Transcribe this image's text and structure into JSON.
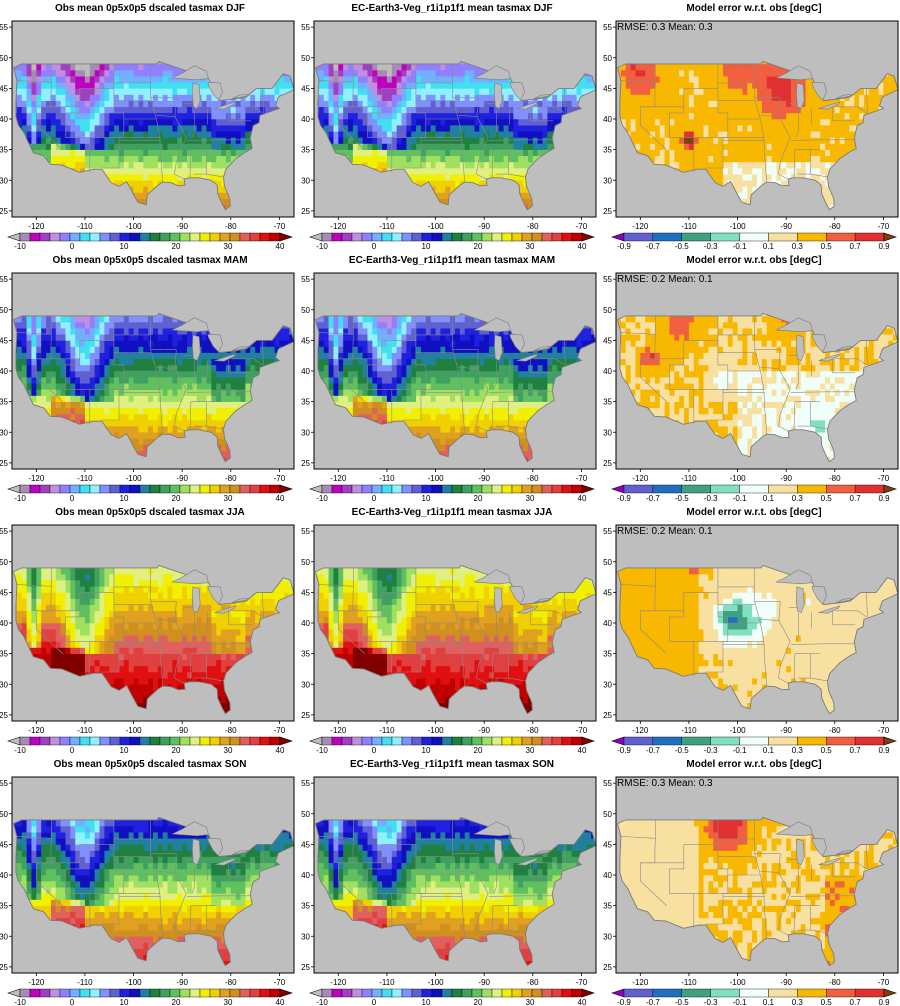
{
  "chart_data": {
    "type": "heatmap",
    "x_ticks": [
      -120,
      -110,
      -100,
      -90,
      -80,
      -70
    ],
    "y_ticks": [
      25,
      30,
      35,
      40,
      45,
      50,
      55
    ],
    "xlim": [
      -125,
      -67
    ],
    "ylim": [
      24,
      56
    ],
    "temperature_colorbar": {
      "tick_labels": [
        "-10",
        "0",
        "10",
        "20",
        "30",
        "40"
      ],
      "colors": [
        "#bdbdbd",
        "#a78bb5",
        "#c000c0",
        "#a040c0",
        "#c090e0",
        "#9080ff",
        "#70b0ff",
        "#40e0f0",
        "#90f0ff",
        "#8090ff",
        "#6060d0",
        "#2020e0",
        "#1010c0",
        "#2080a0",
        "#208040",
        "#40a060",
        "#60c060",
        "#a0e060",
        "#e0f080",
        "#f0f000",
        "#f0d000",
        "#e0a020",
        "#d09020",
        "#e06060",
        "#e04040",
        "#e01010",
        "#c00000",
        "#800000"
      ]
    },
    "error_colorbar": {
      "tick_labels": [
        "-0.9",
        "-0.7",
        "-0.5",
        "-0.3",
        "-0.1",
        "0.1",
        "0.3",
        "0.5",
        "0.7",
        "0.9"
      ],
      "colors": [
        "#9000c0",
        "#6060d0",
        "#2070c0",
        "#40a080",
        "#80e0c0",
        "#f0fff8",
        "#f8e0a0",
        "#f8b800",
        "#f06040",
        "#e03030",
        "#804010"
      ]
    },
    "rows": [
      {
        "season": "DJF",
        "obs": {
          "title": "Obs mean 0p5x0p5 dscaled tasmax DJF"
        },
        "model": {
          "title": "EC-Earth3-Veg_r1i1p1f1 mean tasmax DJF"
        },
        "error": {
          "title": "Model error w.r.t. obs [degC]",
          "stat": "RMSE: 0.3  Mean: 0.3"
        }
      },
      {
        "season": "MAM",
        "obs": {
          "title": "Obs mean 0p5x0p5 dscaled tasmax MAM"
        },
        "model": {
          "title": "EC-Earth3-Veg_r1i1p1f1 mean tasmax MAM"
        },
        "error": {
          "title": "Model error w.r.t. obs [degC]",
          "stat": "RMSE: 0.2  Mean: 0.1"
        }
      },
      {
        "season": "JJA",
        "obs": {
          "title": "Obs mean 0p5x0p5 dscaled tasmax JJA"
        },
        "model": {
          "title": "EC-Earth3-Veg_r1i1p1f1 mean tasmax JJA"
        },
        "error": {
          "title": "Model error w.r.t. obs [degC]",
          "stat": "RMSE: 0.2  Mean: 0.1"
        }
      },
      {
        "season": "SON",
        "obs": {
          "title": "Obs mean 0p5x0p5 dscaled tasmax SON"
        },
        "model": {
          "title": "EC-Earth3-Veg_r1i1p1f1 mean tasmax SON"
        },
        "error": {
          "title": "Model error w.r.t. obs [degC]",
          "stat": "RMSE: 0.3  Mean: 0.3"
        }
      }
    ]
  }
}
